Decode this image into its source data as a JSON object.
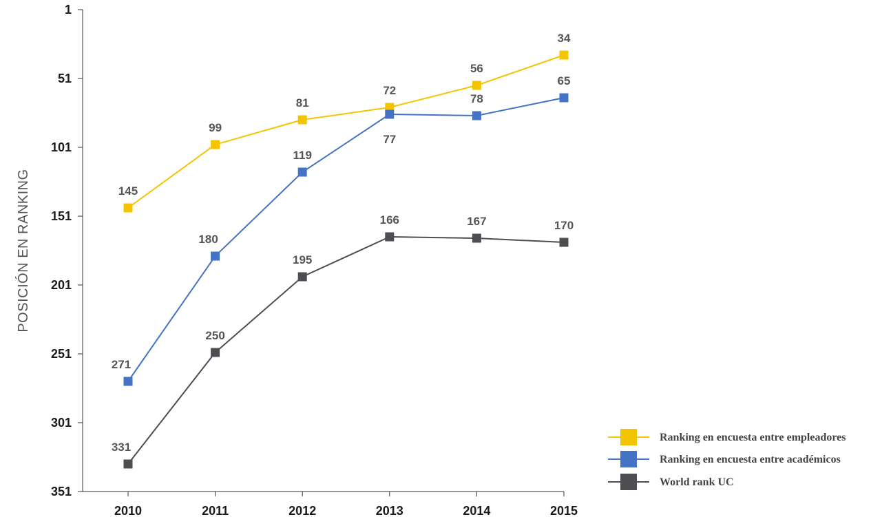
{
  "chart_data": {
    "type": "line",
    "ylabel": "POSICIÓN EN RANKING",
    "xlabel": "",
    "y_reversed": true,
    "ylim": [
      1,
      351
    ],
    "yticks": [
      "1",
      "51",
      "101",
      "151",
      "201",
      "251",
      "301",
      "351"
    ],
    "categories": [
      "2010",
      "2011",
      "2012",
      "2013",
      "2014",
      "2015"
    ],
    "series": [
      {
        "name": "Ranking en encuesta entre empleadores",
        "color": "#f5c400",
        "values": [
          145,
          99,
          81,
          72,
          56,
          34
        ],
        "labels": [
          "145",
          "99",
          "81",
          "72",
          "56",
          "34"
        ]
      },
      {
        "name": "Ranking en encuesta entre académicos",
        "color": "#4472c4",
        "values": [
          271,
          180,
          119,
          77,
          78,
          65
        ],
        "labels": [
          "271",
          "180",
          "119",
          "77",
          "78",
          "65"
        ]
      },
      {
        "name": "World rank UC",
        "color": "#4d4d52",
        "values": [
          331,
          250,
          195,
          166,
          167,
          170
        ],
        "labels": [
          "331",
          "250",
          "195",
          "166",
          "167",
          "170"
        ]
      }
    ],
    "legend_position": "bottom-right",
    "grid": false
  }
}
